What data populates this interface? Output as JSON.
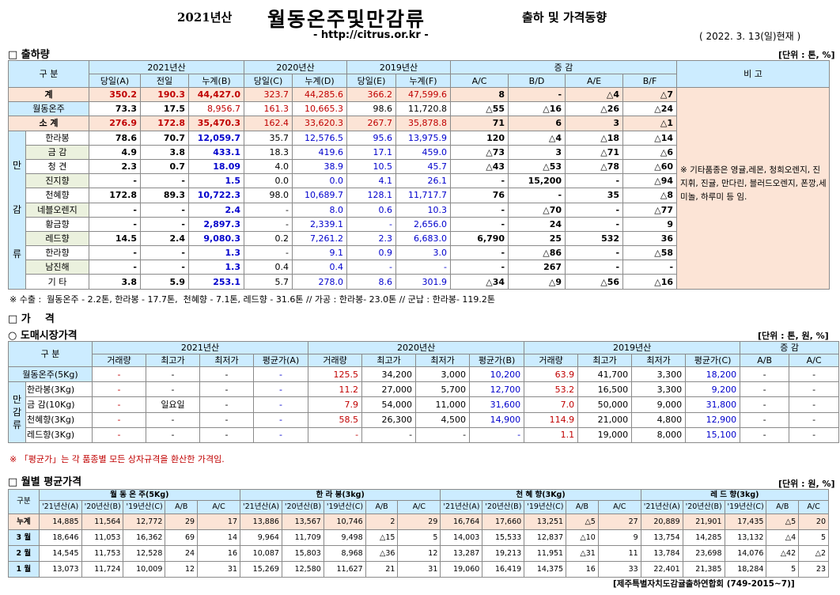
{
  "header": {
    "year": "2021년산",
    "title": "월동온주및만감류",
    "subtitle": "출하 및 가격동향",
    "url": "- http://citrus.or.kr -",
    "date": "( 2022. 3. 13(일)현재 )"
  },
  "shipment": {
    "section_title": "□ 출하량",
    "unit": "[단위 : 톤, %]",
    "headers": {
      "gubun": "구  분",
      "y2021": "2021년산",
      "y2020": "2020년산",
      "y2019": "2019년산",
      "change": "증    감",
      "remark": "비 고",
      "cols": [
        "당일(A)",
        "전일",
        "누계(B)",
        "당일(C)",
        "누계(D)",
        "당일(E)",
        "누계(F)",
        "A/C",
        "B/D",
        "A/E",
        "B/F"
      ]
    },
    "mangam_label": [
      "만",
      "감",
      "류"
    ],
    "rows": [
      {
        "label": "계",
        "v": [
          "350.2",
          "190.3",
          "44,427.0",
          "323.7",
          "44,285.6",
          "366.2",
          "47,599.6",
          "8",
          "-",
          "△4",
          "△7"
        ]
      },
      {
        "label": "월동온주",
        "v": [
          "73.3",
          "17.5",
          "8,956.7",
          "161.3",
          "10,665.3",
          "98.6",
          "11,720.8",
          "△55",
          "△16",
          "△26",
          "△24"
        ]
      },
      {
        "label": "소    계",
        "v": [
          "276.9",
          "172.8",
          "35,470.3",
          "162.4",
          "33,620.3",
          "267.7",
          "35,878.8",
          "71",
          "6",
          "3",
          "△1"
        ]
      },
      {
        "label": "한라봉",
        "v": [
          "78.6",
          "70.7",
          "12,059.7",
          "35.7",
          "12,576.5",
          "95.6",
          "13,975.9",
          "120",
          "△4",
          "△18",
          "△14"
        ]
      },
      {
        "label": "금    감",
        "v": [
          "4.9",
          "3.8",
          "433.1",
          "18.3",
          "419.6",
          "17.1",
          "459.0",
          "△73",
          "3",
          "△71",
          "△6"
        ]
      },
      {
        "label": "청    견",
        "v": [
          "2.3",
          "0.7",
          "18.09",
          "4.0",
          "38.9",
          "10.5",
          "45.7",
          "△43",
          "△53",
          "△78",
          "△60"
        ]
      },
      {
        "label": "진지향",
        "v": [
          "-",
          "-",
          "1.5",
          "0.0",
          "0.0",
          "4.1",
          "26.1",
          "-",
          "15,200",
          "-",
          "△94"
        ]
      },
      {
        "label": "천혜향",
        "v": [
          "172.8",
          "89.3",
          "10,722.3",
          "98.0",
          "10,689.7",
          "128.1",
          "11,717.7",
          "76",
          "-",
          "35",
          "△8"
        ]
      },
      {
        "label": "네블오렌지",
        "v": [
          "-",
          "-",
          "2.4",
          "-",
          "8.0",
          "0.6",
          "10.3",
          "-",
          "△70",
          "-",
          "△77"
        ]
      },
      {
        "label": "황금향",
        "v": [
          "-",
          "-",
          "2,897.3",
          "-",
          "2,339.1",
          "-",
          "2,656.0",
          "-",
          "24",
          "-",
          "9"
        ]
      },
      {
        "label": "레드향",
        "v": [
          "14.5",
          "2.4",
          "9,080.3",
          "0.2",
          "7,261.2",
          "2.3",
          "6,683.0",
          "6,790",
          "25",
          "532",
          "36"
        ]
      },
      {
        "label": "한라향",
        "v": [
          "-",
          "-",
          "1.3",
          "-",
          "9.1",
          "0.9",
          "3.0",
          "-",
          "△86",
          "-",
          "△58"
        ]
      },
      {
        "label": "남진해",
        "v": [
          "-",
          "-",
          "1.3",
          "0.4",
          "0.4",
          "-",
          "-",
          "-",
          "267",
          "-",
          "-"
        ]
      },
      {
        "label": "기    타",
        "v": [
          "3.8",
          "5.9",
          "253.1",
          "5.7",
          "278.0",
          "8.6",
          "301.9",
          "△34",
          "△9",
          "△56",
          "△16"
        ]
      }
    ],
    "remark": "※ 기타품종은 영귤,레몬, 청희오렌지, 진지휘, 진귤, 만다린, 블러드오렌지, 폰깡,세미놀, 하루미 등 임.",
    "note": "※ 수출 :  월동온주 - 2.2톤, 한라봉 - 17.7톤,  천혜향 - 7.1톤, 레드향 - 31.6톤 // 가공 : 한라봉- 23.0톤 // 군납 : 한라봉- 119.2톤"
  },
  "price": {
    "section_title": "□ 가    격",
    "sub_title": "○ 도매시장가격",
    "unit": "[단위 : 톤, 원, %]",
    "headers": {
      "gubun": "구    분",
      "y2021": "2021년산",
      "y2020": "2020년산",
      "y2019": "2019년산",
      "change": "증    감",
      "cols": [
        "거래량",
        "최고가",
        "최저가",
        "평균가(A)",
        "거래량",
        "최고가",
        "최저가",
        "평균가(B)",
        "거래량",
        "최고가",
        "최저가",
        "평균가(C)",
        "A/B",
        "A/C"
      ]
    },
    "mangam_label": [
      "만",
      "감",
      "류"
    ],
    "rows": [
      {
        "label": "월동온주(5Kg)",
        "v": [
          "-",
          "-",
          "-",
          "-",
          "125.5",
          "34,200",
          "3,000",
          "10,200",
          "63.9",
          "41,700",
          "3,300",
          "18,200",
          "-",
          "-"
        ]
      },
      {
        "label": "한라봉(3Kg)",
        "v": [
          "-",
          "-",
          "-",
          "-",
          "11.2",
          "27,000",
          "5,700",
          "12,700",
          "53.2",
          "16,500",
          "3,300",
          "9,200",
          "-",
          "-"
        ]
      },
      {
        "label": "금  감(10Kg)",
        "v": [
          "-",
          "일요일",
          "-",
          "-",
          "7.9",
          "54,000",
          "11,000",
          "31,600",
          "7.0",
          "50,000",
          "9,000",
          "31,800",
          "-",
          "-"
        ]
      },
      {
        "label": "천혜향(3Kg)",
        "v": [
          "-",
          "-",
          "-",
          "-",
          "58.5",
          "26,300",
          "4,500",
          "14,900",
          "114.9",
          "21,000",
          "4,800",
          "12,900",
          "-",
          "-"
        ]
      },
      {
        "label": "레드향(3Kg)",
        "v": [
          "-",
          "-",
          "-",
          "-",
          "-",
          "-",
          "-",
          "-",
          "1.1",
          "19,000",
          "8,000",
          "15,100",
          "-",
          "-"
        ]
      }
    ],
    "note": "※ 「평균가」는 각 품종별 모든 상자규격을 환산한 가격임."
  },
  "monthly": {
    "section_title": "□ 월별 평균가격",
    "unit": "[단위 : 원, %]",
    "gubun": "구분",
    "groups": [
      "월 동 온 주(5Kg)",
      "한 라 봉(3kg)",
      "천 혜 향(3Kg)",
      "레 드 향(3kg)"
    ],
    "cols": [
      "'21년산(A)",
      "'20년산(B)",
      "'19년산(C)",
      "A/B",
      "A/C"
    ],
    "rows": [
      {
        "label": "누계",
        "v": [
          "14,885",
          "11,564",
          "12,772",
          "29",
          "17",
          "13,886",
          "13,567",
          "10,746",
          "2",
          "29",
          "16,764",
          "17,660",
          "13,251",
          "△5",
          "27",
          "20,889",
          "21,901",
          "17,435",
          "△5",
          "20"
        ]
      },
      {
        "label": "3 월",
        "v": [
          "18,646",
          "11,053",
          "16,362",
          "69",
          "14",
          "9,964",
          "11,709",
          "9,498",
          "△15",
          "5",
          "14,003",
          "15,533",
          "12,837",
          "△10",
          "9",
          "13,754",
          "14,285",
          "13,132",
          "△4",
          "5"
        ]
      },
      {
        "label": "2 월",
        "v": [
          "14,545",
          "11,753",
          "12,528",
          "24",
          "16",
          "10,087",
          "15,803",
          "8,968",
          "△36",
          "12",
          "13,287",
          "19,213",
          "11,951",
          "△31",
          "11",
          "13,784",
          "23,698",
          "14,076",
          "△42",
          "△2"
        ]
      },
      {
        "label": "1 월",
        "v": [
          "13,073",
          "11,724",
          "10,009",
          "12",
          "31",
          "15,269",
          "12,580",
          "11,627",
          "21",
          "31",
          "19,060",
          "16,419",
          "14,375",
          "16",
          "33",
          "22,401",
          "21,385",
          "18,284",
          "5",
          "23"
        ]
      }
    ]
  },
  "footer": "[제주특별자치도감귤출하연합회 (749-2015~7)]"
}
